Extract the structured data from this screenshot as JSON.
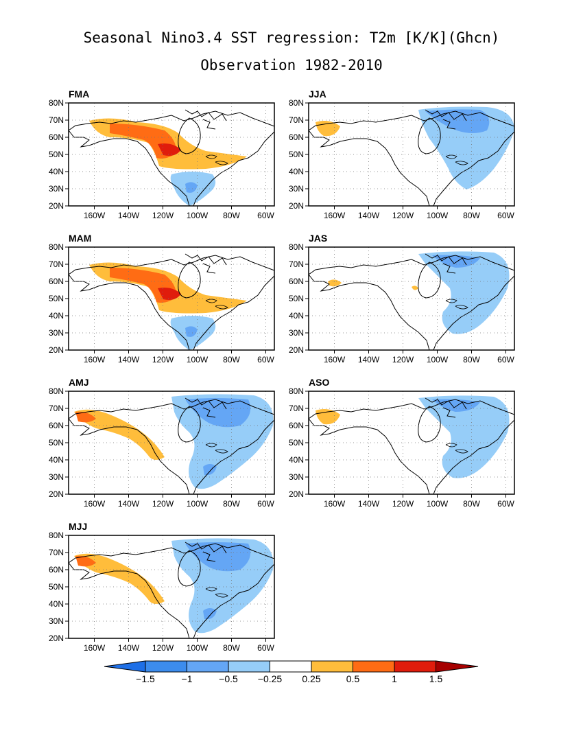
{
  "title_line1": "Seasonal Nino3.4 SST regression: T2m [K/K](Ghcn)",
  "title_line2": "Observation 1982-2010",
  "lat_ticks": [
    "20N",
    "30N",
    "40N",
    "50N",
    "60N",
    "70N",
    "80N"
  ],
  "lon_ticks": [
    "160W",
    "140W",
    "120W",
    "100W",
    "80W",
    "60W"
  ],
  "lon_range": [
    -175,
    -55
  ],
  "lat_range": [
    20,
    80
  ],
  "panels": [
    {
      "label": "FMA",
      "warm": "strong",
      "cold": "south"
    },
    {
      "label": "JJA",
      "warm": "alaska",
      "cold": "northeast"
    },
    {
      "label": "MAM",
      "warm": "strong",
      "cold": "south"
    },
    {
      "label": "JAS",
      "warm": "weak",
      "cold": "east"
    },
    {
      "label": "AMJ",
      "warm": "moderate",
      "cold": "canada"
    },
    {
      "label": "ASO",
      "warm": "alaska",
      "cold": "east"
    },
    {
      "label": "MJJ",
      "warm": "moderate",
      "cold": "canada"
    }
  ],
  "colorbar": {
    "labels": [
      "-1.5",
      "-1",
      "-0.5",
      "-0.25",
      "0.25",
      "0.5",
      "1",
      "1.5"
    ],
    "colors": [
      "#1e6fe6",
      "#3c8ced",
      "#64a6f5",
      "#96cdf8",
      "#ffffff",
      "#ffbd3b",
      "#ff6c14",
      "#e01c0c",
      "#a60000"
    ]
  }
}
